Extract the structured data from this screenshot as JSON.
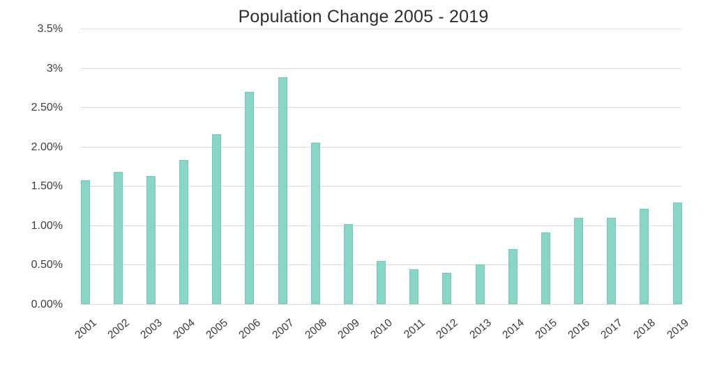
{
  "chart_data": {
    "type": "bar",
    "title": "Population Change 2005 - 2019",
    "categories": [
      "2001",
      "2002",
      "2003",
      "2004",
      "2005",
      "2006",
      "2007",
      "2008",
      "2009",
      "2010",
      "2011",
      "2012",
      "2013",
      "2014",
      "2015",
      "2016",
      "2017",
      "2018",
      "2019"
    ],
    "values": [
      1.57,
      1.68,
      1.63,
      1.83,
      2.16,
      2.7,
      2.88,
      2.05,
      1.02,
      0.55,
      0.44,
      0.4,
      0.5,
      0.7,
      0.91,
      1.1,
      1.1,
      1.21,
      1.29
    ],
    "unit": "%",
    "xlabel": "",
    "ylabel": "",
    "ylim": [
      0,
      3.5
    ],
    "y_ticks": [
      {
        "value": 3.5,
        "label": "3.5%"
      },
      {
        "value": 3.0,
        "label": "3%"
      },
      {
        "value": 2.5,
        "label": "2.50%"
      },
      {
        "value": 2.0,
        "label": "2.00%"
      },
      {
        "value": 1.5,
        "label": "1.50%"
      },
      {
        "value": 1.0,
        "label": "1.00%"
      },
      {
        "value": 0.5,
        "label": "0.50%"
      },
      {
        "value": 0.0,
        "label": "0.00%"
      }
    ],
    "grid": true,
    "legend_position": "none",
    "bar_color": "#89d5c8",
    "gridline_color": "#dcdcdc",
    "tick_text_color": "#3a3a3a",
    "title_color": "#2e2e2e"
  }
}
